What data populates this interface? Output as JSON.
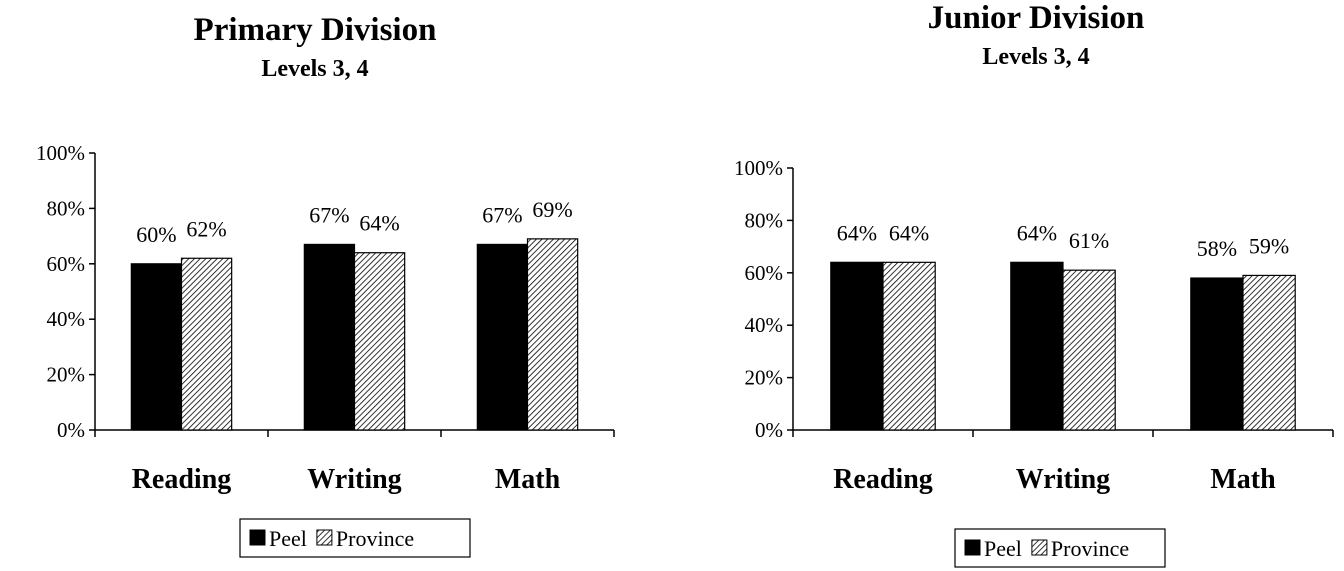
{
  "chart_data": [
    {
      "type": "bar",
      "title": "Primary Division",
      "subtitle": "Levels 3, 4",
      "categories": [
        "Reading",
        "Writing",
        "Math"
      ],
      "series": [
        {
          "name": "Peel",
          "values": [
            60,
            67,
            67
          ],
          "labels": [
            "60%",
            "67%",
            "67%"
          ],
          "fill": "solid",
          "color": "#000000"
        },
        {
          "name": "Province",
          "values": [
            62,
            64,
            69
          ],
          "labels": [
            "62%",
            "64%",
            "69%"
          ],
          "fill": "hatched",
          "color": "#000000"
        }
      ],
      "ylim": [
        0,
        100
      ],
      "yticks": [
        "0%",
        "20%",
        "40%",
        "60%",
        "80%",
        "100%"
      ],
      "xlabel": "",
      "ylabel": "",
      "grid": false,
      "legend": "bottom-center"
    },
    {
      "type": "bar",
      "title": "Junior Division",
      "subtitle": "Levels 3, 4",
      "categories": [
        "Reading",
        "Writing",
        "Math"
      ],
      "series": [
        {
          "name": "Peel",
          "values": [
            64,
            64,
            58
          ],
          "labels": [
            "64%",
            "64%",
            "58%"
          ],
          "fill": "solid",
          "color": "#000000"
        },
        {
          "name": "Province",
          "values": [
            64,
            61,
            59
          ],
          "labels": [
            "64%",
            "61%",
            "59%"
          ],
          "fill": "hatched",
          "color": "#000000"
        }
      ],
      "ylim": [
        0,
        100
      ],
      "yticks": [
        "0%",
        "20%",
        "40%",
        "60%",
        "80%",
        "100%"
      ],
      "xlabel": "",
      "ylabel": "",
      "grid": false,
      "legend": "bottom-center"
    }
  ]
}
